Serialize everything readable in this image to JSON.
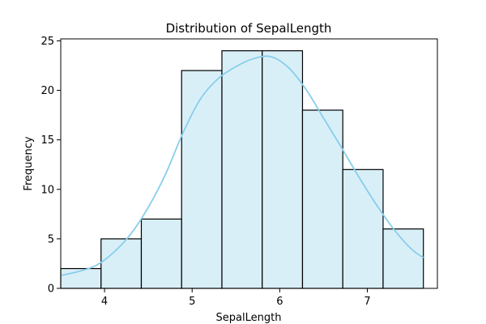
{
  "chart_data": {
    "type": "bar",
    "subtype": "histogram-with-kde",
    "title": "Distribution of SepalLength",
    "xlabel": "SepalLength",
    "ylabel": "Frequency",
    "xlim": [
      3.5,
      7.8
    ],
    "ylim": [
      0,
      25.2
    ],
    "x_ticks": [
      4,
      5,
      6,
      7
    ],
    "y_ticks": [
      0,
      5,
      10,
      15,
      20,
      25
    ],
    "bins": [
      {
        "x0": 3.5,
        "x1": 3.96,
        "count": 2
      },
      {
        "x0": 3.96,
        "x1": 4.42,
        "count": 5
      },
      {
        "x0": 4.42,
        "x1": 4.88,
        "count": 7
      },
      {
        "x0": 4.88,
        "x1": 5.34,
        "count": 22
      },
      {
        "x0": 5.34,
        "x1": 5.8,
        "count": 24
      },
      {
        "x0": 5.8,
        "x1": 6.26,
        "count": 24
      },
      {
        "x0": 6.26,
        "x1": 6.72,
        "count": 18
      },
      {
        "x0": 6.72,
        "x1": 7.18,
        "count": 12
      },
      {
        "x0": 7.18,
        "x1": 7.64,
        "count": 6
      }
    ],
    "kde": {
      "x": [
        3.5,
        3.7,
        3.9,
        4.1,
        4.3,
        4.5,
        4.7,
        4.9,
        5.1,
        5.3,
        5.5,
        5.7,
        5.9,
        6.1,
        6.3,
        6.5,
        6.7,
        6.9,
        7.1,
        7.3,
        7.5,
        7.64
      ],
      "y": [
        1.3,
        1.7,
        2.3,
        3.6,
        5.5,
        8.2,
        11.6,
        15.8,
        19.2,
        21.2,
        22.4,
        23.2,
        23.4,
        22.3,
        20.1,
        17.2,
        14.3,
        11.3,
        8.5,
        6.0,
        4.0,
        3.1
      ]
    },
    "colors": {
      "bar_fill": "#d9eff8",
      "bar_stroke": "#000000",
      "kde_line": "#87ceeb",
      "axes": "#000000"
    },
    "grid": false,
    "legend": "none"
  }
}
